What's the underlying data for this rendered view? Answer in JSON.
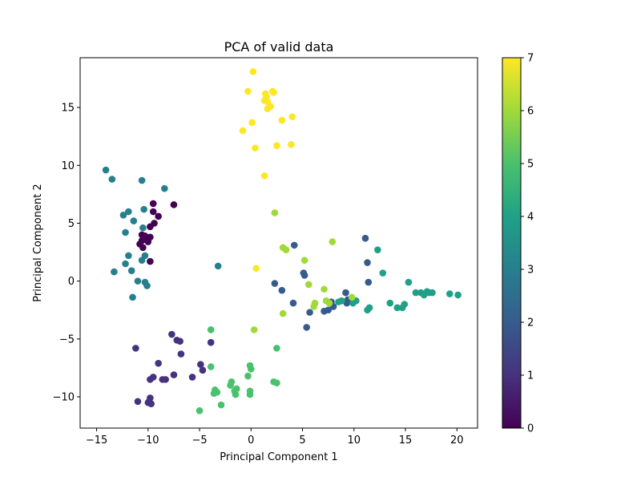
{
  "chart_data": {
    "type": "scatter",
    "title": "PCA of valid data",
    "xlabel": "Principal Component 1",
    "ylabel": "Principal Component 2",
    "xlim": [
      -16.6,
      22.0
    ],
    "ylim": [
      -12.7,
      19.3
    ],
    "xticks": [
      -15,
      -10,
      -5,
      0,
      5,
      10,
      15,
      20
    ],
    "yticks": [
      -10,
      -5,
      0,
      5,
      10,
      15
    ],
    "grid": false,
    "colormap": "viridis",
    "colorbar": {
      "min": 0,
      "max": 7,
      "ticks": [
        0,
        1,
        2,
        3,
        4,
        5,
        6,
        7
      ]
    },
    "points": [
      {
        "x": -10.6,
        "y": 4.0,
        "c": 0
      },
      {
        "x": -10.2,
        "y": 3.6,
        "c": 0
      },
      {
        "x": -10.8,
        "y": 3.2,
        "c": 0
      },
      {
        "x": -9.8,
        "y": 3.8,
        "c": 0
      },
      {
        "x": -10.5,
        "y": 2.9,
        "c": 0
      },
      {
        "x": -10.0,
        "y": 3.4,
        "c": 0
      },
      {
        "x": -10.6,
        "y": 3.5,
        "c": 0
      },
      {
        "x": -9.5,
        "y": 6.7,
        "c": 0
      },
      {
        "x": -9.5,
        "y": 6.0,
        "c": 0
      },
      {
        "x": -9.0,
        "y": 5.6,
        "c": 0
      },
      {
        "x": -7.5,
        "y": 6.6,
        "c": 0
      },
      {
        "x": -9.4,
        "y": 5.0,
        "c": 0
      },
      {
        "x": -9.8,
        "y": 4.7,
        "c": 0
      },
      {
        "x": -9.8,
        "y": 1.7,
        "c": 0
      },
      {
        "x": -10.3,
        "y": 3.9,
        "c": 0
      },
      {
        "x": -11.2,
        "y": -5.8,
        "c": 1
      },
      {
        "x": -11.0,
        "y": -10.4,
        "c": 1
      },
      {
        "x": -9.9,
        "y": -10.4,
        "c": 1
      },
      {
        "x": -9.8,
        "y": -10.1,
        "c": 1
      },
      {
        "x": -9.7,
        "y": -10.6,
        "c": 1
      },
      {
        "x": -10.0,
        "y": -10.5,
        "c": 1
      },
      {
        "x": -9.8,
        "y": -8.5,
        "c": 1
      },
      {
        "x": -9.5,
        "y": -8.3,
        "c": 1
      },
      {
        "x": -9.0,
        "y": -7.1,
        "c": 1
      },
      {
        "x": -8.6,
        "y": -8.5,
        "c": 1
      },
      {
        "x": -8.3,
        "y": -8.5,
        "c": 1
      },
      {
        "x": -7.7,
        "y": -4.6,
        "c": 1
      },
      {
        "x": -7.5,
        "y": -8.1,
        "c": 1
      },
      {
        "x": -7.2,
        "y": -5.1,
        "c": 1
      },
      {
        "x": -6.9,
        "y": -5.2,
        "c": 1
      },
      {
        "x": -6.8,
        "y": -6.3,
        "c": 1
      },
      {
        "x": -5.7,
        "y": -8.3,
        "c": 1
      },
      {
        "x": -4.9,
        "y": -7.2,
        "c": 1
      },
      {
        "x": -4.7,
        "y": -7.7,
        "c": 1
      },
      {
        "x": -3.9,
        "y": -5.3,
        "c": 1
      },
      {
        "x": 4.2,
        "y": 3.1,
        "c": 2
      },
      {
        "x": 2.3,
        "y": -0.2,
        "c": 2
      },
      {
        "x": 3.0,
        "y": -0.8,
        "c": 2
      },
      {
        "x": 5.1,
        "y": 0.7,
        "c": 2
      },
      {
        "x": 5.2,
        "y": 0.5,
        "c": 2
      },
      {
        "x": 4.1,
        "y": -1.9,
        "c": 2
      },
      {
        "x": 5.4,
        "y": -4.0,
        "c": 2
      },
      {
        "x": 5.7,
        "y": -2.7,
        "c": 2
      },
      {
        "x": 7.1,
        "y": -2.6,
        "c": 2
      },
      {
        "x": 7.5,
        "y": -2.5,
        "c": 2
      },
      {
        "x": 7.8,
        "y": -1.8,
        "c": 2
      },
      {
        "x": 8.0,
        "y": -2.2,
        "c": 2
      },
      {
        "x": 9.2,
        "y": -1.0,
        "c": 2
      },
      {
        "x": 9.4,
        "y": -1.6,
        "c": 2
      },
      {
        "x": 11.1,
        "y": 3.7,
        "c": 2
      },
      {
        "x": 11.3,
        "y": 1.6,
        "c": 2
      },
      {
        "x": 11.4,
        "y": -0.1,
        "c": 2
      },
      {
        "x": 9.3,
        "y": -1.9,
        "c": 2
      },
      {
        "x": -14.1,
        "y": 9.6,
        "c": 3
      },
      {
        "x": -13.5,
        "y": 8.8,
        "c": 3
      },
      {
        "x": -10.6,
        "y": 8.7,
        "c": 3
      },
      {
        "x": -8.4,
        "y": 8.0,
        "c": 3
      },
      {
        "x": -12.4,
        "y": 5.7,
        "c": 3
      },
      {
        "x": -11.9,
        "y": 6.0,
        "c": 3
      },
      {
        "x": -10.4,
        "y": 6.2,
        "c": 3
      },
      {
        "x": -11.4,
        "y": 5.2,
        "c": 3
      },
      {
        "x": -10.5,
        "y": 4.6,
        "c": 3
      },
      {
        "x": -12.2,
        "y": 4.2,
        "c": 3
      },
      {
        "x": -11.9,
        "y": 2.2,
        "c": 3
      },
      {
        "x": -12.2,
        "y": 1.5,
        "c": 3
      },
      {
        "x": -10.6,
        "y": 1.8,
        "c": 3
      },
      {
        "x": -10.3,
        "y": 2.2,
        "c": 3
      },
      {
        "x": -13.3,
        "y": 0.8,
        "c": 3
      },
      {
        "x": -11.6,
        "y": 0.9,
        "c": 3
      },
      {
        "x": -11.0,
        "y": 0.0,
        "c": 3
      },
      {
        "x": -10.3,
        "y": -0.1,
        "c": 3
      },
      {
        "x": -10.1,
        "y": -0.4,
        "c": 3
      },
      {
        "x": -11.5,
        "y": -1.4,
        "c": 3
      },
      {
        "x": -3.2,
        "y": 1.3,
        "c": 3
      },
      {
        "x": 8.8,
        "y": -1.7,
        "c": 4
      },
      {
        "x": 10.2,
        "y": -1.7,
        "c": 4
      },
      {
        "x": 11.3,
        "y": -2.5,
        "c": 4
      },
      {
        "x": 11.5,
        "y": -2.3,
        "c": 4
      },
      {
        "x": 12.3,
        "y": 2.7,
        "c": 4
      },
      {
        "x": 12.8,
        "y": 0.7,
        "c": 4
      },
      {
        "x": 13.5,
        "y": -1.9,
        "c": 4
      },
      {
        "x": 14.2,
        "y": -2.3,
        "c": 4
      },
      {
        "x": 14.7,
        "y": -2.3,
        "c": 4
      },
      {
        "x": 14.9,
        "y": -2.0,
        "c": 4
      },
      {
        "x": 15.3,
        "y": -0.1,
        "c": 4
      },
      {
        "x": 16.0,
        "y": -1.0,
        "c": 4
      },
      {
        "x": 16.5,
        "y": -1.0,
        "c": 4
      },
      {
        "x": 16.8,
        "y": -1.2,
        "c": 4
      },
      {
        "x": 17.1,
        "y": -0.9,
        "c": 4
      },
      {
        "x": 17.3,
        "y": -1.0,
        "c": 4
      },
      {
        "x": 17.6,
        "y": -1.0,
        "c": 4
      },
      {
        "x": 19.3,
        "y": -1.1,
        "c": 4
      },
      {
        "x": 20.1,
        "y": -1.2,
        "c": 4
      },
      {
        "x": 9.9,
        "y": -1.9,
        "c": 4
      },
      {
        "x": 8.5,
        "y": -1.8,
        "c": 4
      },
      {
        "x": -5.0,
        "y": -11.2,
        "c": 5
      },
      {
        "x": -3.9,
        "y": -4.2,
        "c": 5
      },
      {
        "x": -3.9,
        "y": -7.4,
        "c": 5
      },
      {
        "x": -3.5,
        "y": -9.4,
        "c": 5
      },
      {
        "x": -3.3,
        "y": -9.6,
        "c": 5
      },
      {
        "x": -2.9,
        "y": -10.7,
        "c": 5
      },
      {
        "x": -1.9,
        "y": -8.7,
        "c": 5
      },
      {
        "x": -2.0,
        "y": -9.0,
        "c": 5
      },
      {
        "x": -1.6,
        "y": -9.5,
        "c": 5
      },
      {
        "x": -1.4,
        "y": -9.3,
        "c": 5
      },
      {
        "x": -1.5,
        "y": -9.8,
        "c": 5
      },
      {
        "x": -0.3,
        "y": -8.2,
        "c": 5
      },
      {
        "x": -0.1,
        "y": -7.3,
        "c": 5
      },
      {
        "x": 0.0,
        "y": -7.6,
        "c": 5
      },
      {
        "x": -0.1,
        "y": -9.5,
        "c": 5
      },
      {
        "x": -0.1,
        "y": -9.8,
        "c": 5
      },
      {
        "x": 2.2,
        "y": -8.7,
        "c": 5
      },
      {
        "x": 2.5,
        "y": -8.8,
        "c": 5
      },
      {
        "x": 2.5,
        "y": -5.8,
        "c": 5
      },
      {
        "x": -3.6,
        "y": -9.7,
        "c": 5
      },
      {
        "x": 2.3,
        "y": 5.9,
        "c": 6
      },
      {
        "x": 3.1,
        "y": 2.9,
        "c": 6
      },
      {
        "x": 3.4,
        "y": 2.7,
        "c": 6
      },
      {
        "x": 5.2,
        "y": 1.8,
        "c": 6
      },
      {
        "x": 5.6,
        "y": -0.3,
        "c": 6
      },
      {
        "x": 6.2,
        "y": -1.9,
        "c": 6
      },
      {
        "x": 6.1,
        "y": -2.2,
        "c": 6
      },
      {
        "x": 7.1,
        "y": -0.7,
        "c": 6
      },
      {
        "x": 7.3,
        "y": -1.7,
        "c": 6
      },
      {
        "x": 7.6,
        "y": -1.9,
        "c": 6
      },
      {
        "x": 7.9,
        "y": 3.4,
        "c": 6
      },
      {
        "x": 9.8,
        "y": -1.4,
        "c": 6
      },
      {
        "x": 3.1,
        "y": -2.8,
        "c": 6
      },
      {
        "x": 0.3,
        "y": -4.2,
        "c": 6
      },
      {
        "x": 0.2,
        "y": 18.1,
        "c": 7
      },
      {
        "x": -0.3,
        "y": 16.4,
        "c": 7
      },
      {
        "x": 1.4,
        "y": 16.2,
        "c": 7
      },
      {
        "x": 2.1,
        "y": 16.4,
        "c": 7
      },
      {
        "x": 2.2,
        "y": 16.3,
        "c": 7
      },
      {
        "x": 1.5,
        "y": 15.9,
        "c": 7
      },
      {
        "x": 1.3,
        "y": 15.6,
        "c": 7
      },
      {
        "x": 1.6,
        "y": 15.5,
        "c": 7
      },
      {
        "x": 1.9,
        "y": 15.1,
        "c": 7
      },
      {
        "x": 1.6,
        "y": 14.9,
        "c": 7
      },
      {
        "x": 3.0,
        "y": 13.9,
        "c": 7
      },
      {
        "x": 4.0,
        "y": 14.2,
        "c": 7
      },
      {
        "x": 0.1,
        "y": 13.7,
        "c": 7
      },
      {
        "x": -0.8,
        "y": 13.0,
        "c": 7
      },
      {
        "x": 0.4,
        "y": 11.5,
        "c": 7
      },
      {
        "x": 2.5,
        "y": 11.7,
        "c": 7
      },
      {
        "x": 3.9,
        "y": 11.8,
        "c": 7
      },
      {
        "x": 1.3,
        "y": 9.1,
        "c": 7
      },
      {
        "x": 0.5,
        "y": 1.1,
        "c": 7
      }
    ]
  }
}
